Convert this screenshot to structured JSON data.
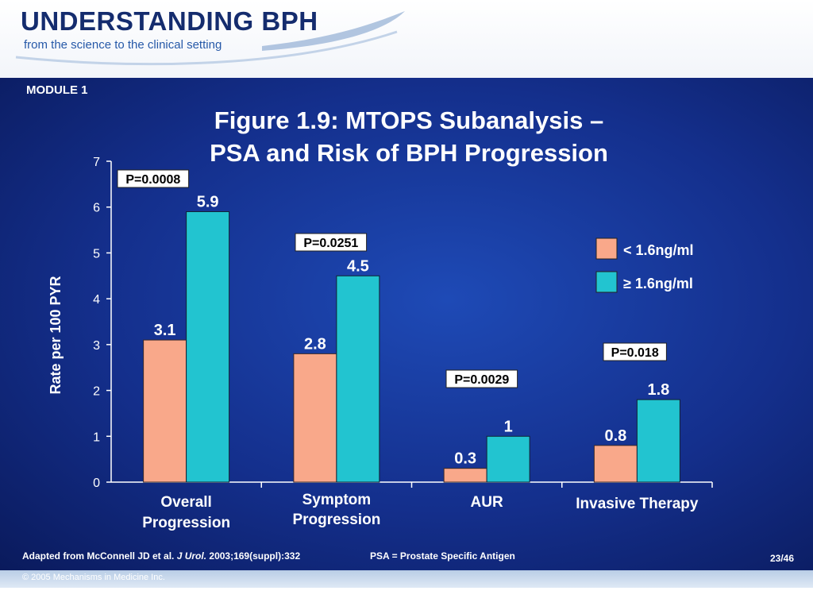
{
  "header": {
    "brand_title": "UNDERSTANDING BPH",
    "brand_subtitle": "from the science to the clinical setting"
  },
  "module_tag": "MODULE 1",
  "footer": {
    "citation_prefix": "Adapted from McConnell JD et al.",
    "citation_journal": "J Urol.",
    "citation_suffix": "2003;169(suppl):332",
    "abbreviation": "PSA = Prostate Specific Antigen",
    "page_number": "23/46",
    "copyright": "© 2005 Mechanisms in Medicine Inc."
  },
  "colors": {
    "series_low": "#f9a88a",
    "series_high": "#22c4d0",
    "background": "#1a3c9e",
    "text": "#ffffff"
  },
  "chart_data": {
    "type": "bar",
    "title_lines": [
      "Figure 1.9: MTOPS Subanalysis –",
      "PSA and Risk of BPH Progression"
    ],
    "ylabel": "Rate per 100 PYR",
    "xlabel": "",
    "ylim": [
      0,
      7
    ],
    "yticks": [
      0,
      1,
      2,
      3,
      4,
      5,
      6,
      7
    ],
    "categories": [
      [
        "Overall",
        "Progression"
      ],
      [
        "Symptom",
        "Progression"
      ],
      [
        "AUR"
      ],
      [
        "Invasive Therapy"
      ]
    ],
    "series": [
      {
        "name": "< 1.6ng/ml",
        "values": [
          3.1,
          2.8,
          0.3,
          0.8
        ],
        "labels": [
          "3.1",
          "2.8",
          "0.3",
          "0.8"
        ]
      },
      {
        "name": "≥ 1.6ng/ml",
        "values": [
          5.9,
          4.5,
          1,
          1.8
        ],
        "labels": [
          "5.9",
          "4.5",
          "1",
          "1.8"
        ]
      }
    ],
    "p_values": [
      "P=0.0008",
      "P=0.0251",
      "P=0.0029",
      "P=0.018"
    ],
    "legend_position": "right",
    "grid": false
  }
}
